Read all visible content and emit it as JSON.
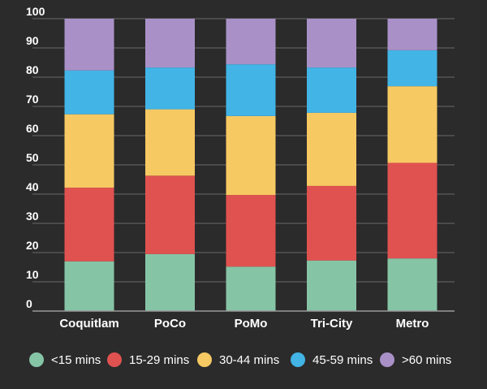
{
  "chart_data": {
    "type": "bar",
    "stacked": true,
    "categories": [
      "Coquitlam",
      "PoCo",
      "PoMo",
      "Tri-City",
      "Metro"
    ],
    "series": [
      {
        "name": "<15 mins",
        "color": "#86c4a6",
        "values": [
          17,
          19.5,
          15.2,
          17.3,
          18
        ]
      },
      {
        "name": "15-29 mins",
        "color": "#e05250",
        "values": [
          25.2,
          26.8,
          24.5,
          25.5,
          32.7
        ]
      },
      {
        "name": "30-44 mins",
        "color": "#f7c963",
        "values": [
          25.1,
          22.7,
          27,
          25,
          26.2
        ]
      },
      {
        "name": "45-59 mins",
        "color": "#42b4e6",
        "values": [
          15,
          14.3,
          17.7,
          15.5,
          12.3
        ]
      },
      {
        "name": ">60 mins",
        "color": "#a991c8",
        "values": [
          17.7,
          16.7,
          15.6,
          16.7,
          10.8
        ]
      }
    ],
    "ylim": [
      0,
      100
    ],
    "yticks": [
      "0",
      "10",
      "20",
      "30",
      "40",
      "50",
      "60",
      "70",
      "80",
      "90",
      "100"
    ],
    "grid": true,
    "legend_position": "bottom"
  }
}
